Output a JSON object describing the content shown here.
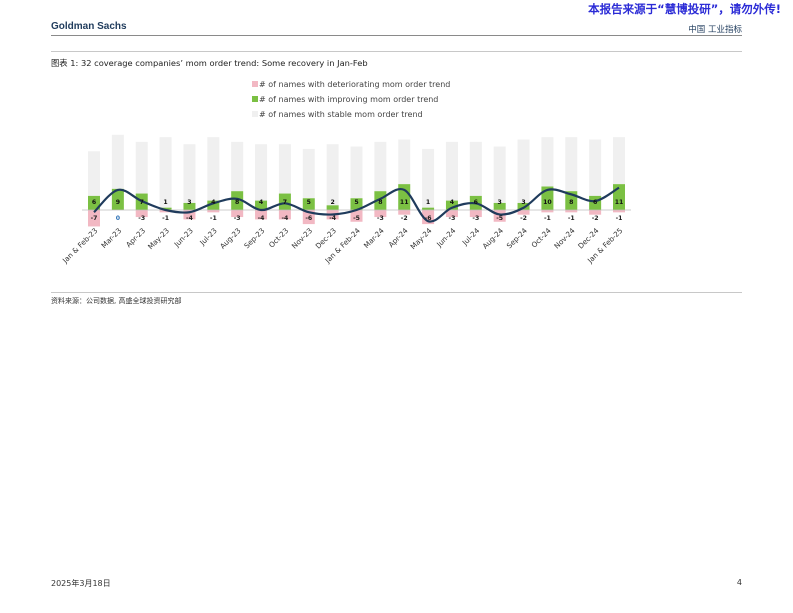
{
  "watermark": "本报告来源于“慧博投研”，请勿外传!",
  "header": {
    "brand": "Goldman Sachs",
    "right_label": "中国 工业指标"
  },
  "exhibit_title": "图表 1: 32 coverage companies’  mom order trend: Some recovery in Jan-Feb",
  "source": "资料来源：公司数据, 高盛全球投资研究部",
  "footer": {
    "date": "2025年3月18日",
    "page": "4"
  },
  "colors": {
    "deteriorating": "#f2b8c3",
    "improving": "#7bc043",
    "stable": "#f0f0f0",
    "line": "#1f3b5c",
    "label_neg": "#222222",
    "label_zero": "#2a6fb5"
  },
  "chart_data": {
    "type": "bar",
    "stacked": true,
    "categories": [
      "Jan & Feb-23",
      "Mar-23",
      "Apr-23",
      "May-23",
      "Jun-23",
      "Jul-23",
      "Aug-23",
      "Sep-23",
      "Oct-23",
      "Nov-23",
      "Dec-23",
      "Jan & Feb-24",
      "Mar-24",
      "Apr-24",
      "May-24",
      "Jun-24",
      "Jul-24",
      "Aug-24",
      "Sep-24",
      "Oct-24",
      "Nov-24",
      "Dec-24",
      "Jan & Feb-25"
    ],
    "series": [
      {
        "name": "# of names with deteriorating mom order trend",
        "values": [
          -7,
          0,
          -3,
          -1,
          -4,
          -1,
          -3,
          -4,
          -4,
          -6,
          -4,
          -5,
          -3,
          -2,
          -6,
          -3,
          -3,
          -5,
          -2,
          -1,
          -1,
          -2,
          -1
        ]
      },
      {
        "name": "# of names with improving mom order trend",
        "values": [
          6,
          9,
          7,
          1,
          3,
          4,
          8,
          4,
          7,
          5,
          2,
          5,
          8,
          11,
          1,
          4,
          6,
          3,
          3,
          10,
          8,
          6,
          11
        ]
      },
      {
        "name": "# of names with stable mom order trend",
        "values": [
          19,
          23,
          22,
          30,
          25,
          27,
          21,
          24,
          21,
          21,
          26,
          22,
          21,
          19,
          25,
          25,
          23,
          24,
          27,
          21,
          23,
          24,
          20
        ]
      }
    ],
    "net_line": true,
    "grid": false,
    "legend_position": "top-center"
  }
}
